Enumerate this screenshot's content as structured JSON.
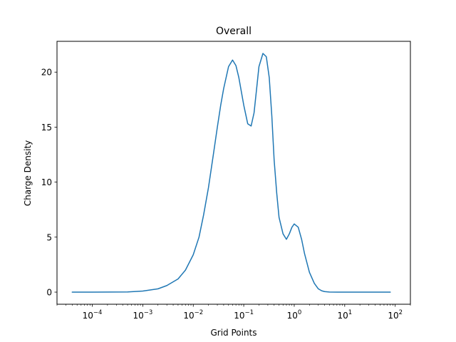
{
  "chart_data": {
    "type": "line",
    "title": "Overall",
    "xlabel": "Grid Points",
    "ylabel": "Charge Density",
    "x_scale": "log",
    "xlim": [
      2e-05,
      200
    ],
    "ylim": [
      -1.1,
      22.8
    ],
    "grid": false,
    "legend": "none",
    "x_ticks": [
      {
        "value": 0.0001,
        "base": "10",
        "exp": "−4"
      },
      {
        "value": 0.001,
        "base": "10",
        "exp": "−3"
      },
      {
        "value": 0.01,
        "base": "10",
        "exp": "−2"
      },
      {
        "value": 0.1,
        "base": "10",
        "exp": "−1"
      },
      {
        "value": 1,
        "base": "10",
        "exp": "0"
      },
      {
        "value": 10,
        "base": "10",
        "exp": "1"
      },
      {
        "value": 100,
        "base": "10",
        "exp": "2"
      }
    ],
    "y_ticks": [
      {
        "value": 0,
        "label": "0"
      },
      {
        "value": 5,
        "label": "5"
      },
      {
        "value": 10,
        "label": "10"
      },
      {
        "value": 15,
        "label": "15"
      },
      {
        "value": 20,
        "label": "20"
      }
    ],
    "series": [
      {
        "color": "#1f77b4",
        "x": [
          4e-05,
          0.0001,
          0.0005,
          0.001,
          0.002,
          0.003,
          0.005,
          0.007,
          0.01,
          0.013,
          0.016,
          0.02,
          0.025,
          0.03,
          0.035,
          0.04,
          0.05,
          0.06,
          0.07,
          0.08,
          0.1,
          0.12,
          0.14,
          0.16,
          0.18,
          0.2,
          0.24,
          0.28,
          0.32,
          0.36,
          0.4,
          0.45,
          0.5,
          0.6,
          0.7,
          0.8,
          0.9,
          1.0,
          1.2,
          1.4,
          1.6,
          2.0,
          2.5,
          3.0,
          3.5,
          4.0,
          5.0,
          7.0,
          10,
          20,
          80
        ],
        "y": [
          0.0,
          0.0,
          0.02,
          0.1,
          0.3,
          0.6,
          1.2,
          2.0,
          3.4,
          5.0,
          7.0,
          9.5,
          12.5,
          15.0,
          17.0,
          18.5,
          20.5,
          21.1,
          20.6,
          19.5,
          17.0,
          15.3,
          15.1,
          16.3,
          18.5,
          20.5,
          21.7,
          21.4,
          19.5,
          16.0,
          12.0,
          9.0,
          6.8,
          5.3,
          4.8,
          5.3,
          5.9,
          6.2,
          5.9,
          4.8,
          3.5,
          1.8,
          0.8,
          0.3,
          0.12,
          0.05,
          0.01,
          0.0,
          0.0,
          0.0,
          0.0
        ]
      }
    ]
  }
}
